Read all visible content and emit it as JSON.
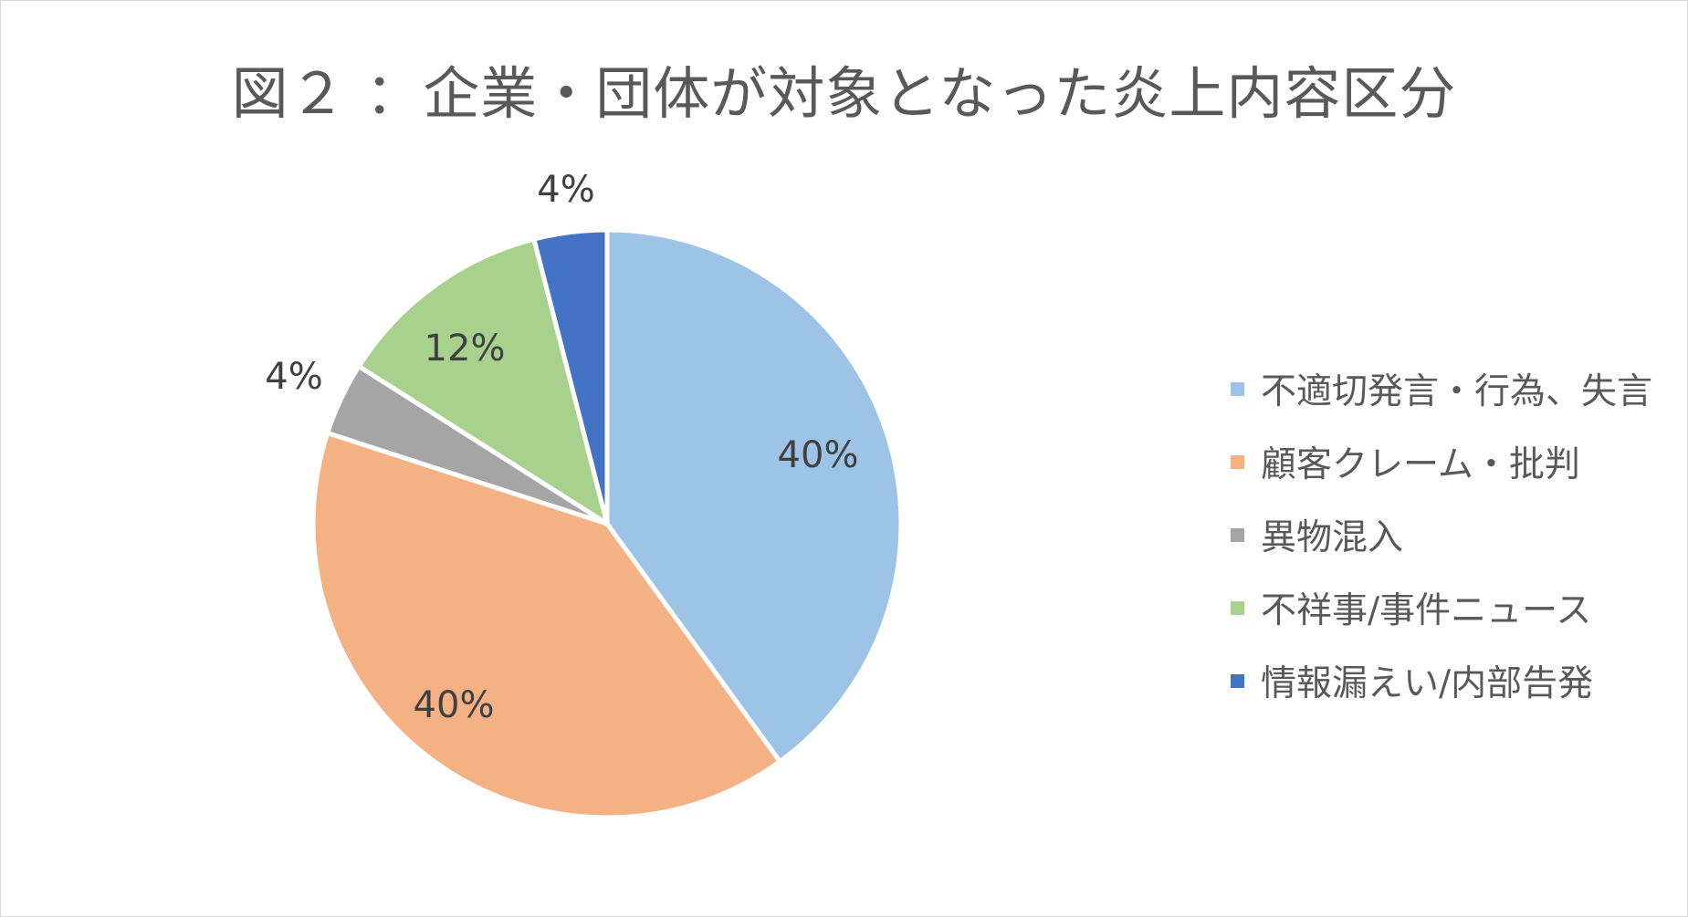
{
  "chart_data": {
    "type": "pie",
    "title": "図２ ：企業・団体が対象となった炎上内容区分",
    "slices": [
      {
        "label": "不適切発言・行為、失言",
        "value": 40,
        "data_label": "40%",
        "color": "#9DC3E6"
      },
      {
        "label": "顧客クレーム・批判",
        "value": 40,
        "data_label": "40%",
        "color": "#F4B183"
      },
      {
        "label": "異物混入",
        "value": 4,
        "data_label": "4%",
        "color": "#A5A5A5"
      },
      {
        "label": "不祥事/事件ニュース",
        "value": 12,
        "data_label": "12%",
        "color": "#A9D18E"
      },
      {
        "label": "情報漏えい/内部告発",
        "value": 4,
        "data_label": "4%",
        "color": "#4472C4"
      }
    ],
    "start": "12 o'clock",
    "direction": "clockwise",
    "legend_position": "right"
  }
}
